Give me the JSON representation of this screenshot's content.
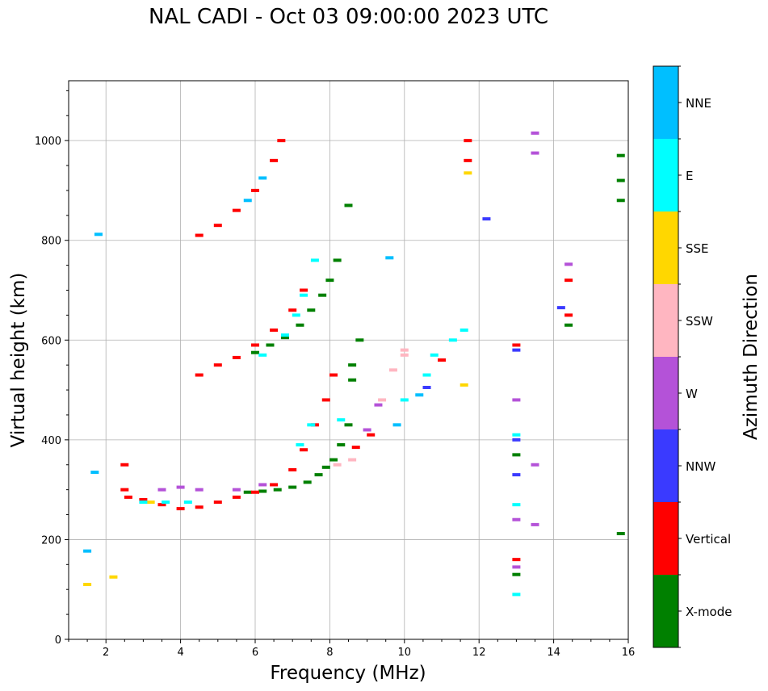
{
  "chart_data": {
    "type": "scatter",
    "title": "NAL CADI - Oct 03 09:00:00 2023 UTC",
    "xlabel": "Frequency (MHz)",
    "ylabel": "Virtual height (km)",
    "xlim": [
      1,
      16
    ],
    "ylim": [
      0,
      1120
    ],
    "xticks": [
      2,
      4,
      6,
      8,
      10,
      12,
      14,
      16
    ],
    "yticks": [
      0,
      200,
      400,
      600,
      800,
      1000
    ],
    "grid": true,
    "colorbar": {
      "label": "Azimuth Direction",
      "categories": [
        "X-mode",
        "Vertical",
        "NNW",
        "W",
        "SSW",
        "SSE",
        "E",
        "NNE"
      ],
      "colors": [
        "#008000",
        "#ff0000",
        "#3a3aff",
        "#b452d8",
        "#ffb6c1",
        "#ffd700",
        "#00ffff",
        "#00bfff"
      ]
    },
    "series": [
      {
        "name": "X-mode",
        "points": [
          [
            5.8,
            295
          ],
          [
            6.2,
            297
          ],
          [
            6.6,
            300
          ],
          [
            7.0,
            305
          ],
          [
            7.4,
            315
          ],
          [
            7.7,
            330
          ],
          [
            7.9,
            345
          ],
          [
            8.1,
            360
          ],
          [
            8.3,
            390
          ],
          [
            8.5,
            430
          ],
          [
            6.0,
            575
          ],
          [
            6.4,
            590
          ],
          [
            6.8,
            605
          ],
          [
            7.2,
            630
          ],
          [
            7.5,
            660
          ],
          [
            7.8,
            690
          ],
          [
            8.0,
            720
          ],
          [
            8.2,
            760
          ],
          [
            8.5,
            870
          ],
          [
            8.6,
            550
          ],
          [
            8.6,
            520
          ],
          [
            8.8,
            600
          ],
          [
            13.0,
            130
          ],
          [
            13.0,
            370
          ],
          [
            14.4,
            630
          ],
          [
            15.8,
            920
          ],
          [
            15.8,
            970
          ],
          [
            15.8,
            880
          ],
          [
            15.8,
            212
          ]
        ]
      },
      {
        "name": "Vertical",
        "points": [
          [
            2.6,
            285
          ],
          [
            3.0,
            280
          ],
          [
            3.5,
            270
          ],
          [
            4.0,
            262
          ],
          [
            4.5,
            265
          ],
          [
            5.0,
            275
          ],
          [
            5.5,
            285
          ],
          [
            6.0,
            295
          ],
          [
            6.5,
            310
          ],
          [
            7.0,
            340
          ],
          [
            7.3,
            380
          ],
          [
            7.6,
            430
          ],
          [
            7.9,
            480
          ],
          [
            8.1,
            530
          ],
          [
            8.7,
            385
          ],
          [
            9.1,
            410
          ],
          [
            4.5,
            530
          ],
          [
            5.0,
            550
          ],
          [
            5.5,
            565
          ],
          [
            6.0,
            590
          ],
          [
            6.5,
            620
          ],
          [
            7.0,
            660
          ],
          [
            7.3,
            700
          ],
          [
            4.5,
            810
          ],
          [
            5.0,
            830
          ],
          [
            5.5,
            860
          ],
          [
            6.0,
            900
          ],
          [
            6.5,
            960
          ],
          [
            6.7,
            1000
          ],
          [
            2.5,
            350
          ],
          [
            2.5,
            300
          ],
          [
            11.7,
            1000
          ],
          [
            11.7,
            960
          ],
          [
            13.0,
            160
          ],
          [
            13.0,
            590
          ],
          [
            14.4,
            650
          ],
          [
            14.4,
            720
          ],
          [
            11.0,
            560
          ]
        ]
      },
      {
        "name": "NNW",
        "points": [
          [
            13.0,
            330
          ],
          [
            13.0,
            400
          ],
          [
            13.0,
            580
          ],
          [
            14.2,
            665
          ],
          [
            10.6,
            505
          ],
          [
            12.2,
            843
          ]
        ]
      },
      {
        "name": "W",
        "points": [
          [
            3.5,
            300
          ],
          [
            4.0,
            305
          ],
          [
            4.5,
            300
          ],
          [
            5.5,
            300
          ],
          [
            6.2,
            310
          ],
          [
            9.0,
            420
          ],
          [
            9.3,
            470
          ],
          [
            13.0,
            145
          ],
          [
            13.0,
            240
          ],
          [
            13.0,
            480
          ],
          [
            13.5,
            1015
          ],
          [
            13.5,
            975
          ],
          [
            13.5,
            350
          ],
          [
            13.5,
            230
          ],
          [
            14.4,
            752
          ]
        ]
      },
      {
        "name": "SSW",
        "points": [
          [
            8.2,
            350
          ],
          [
            8.6,
            360
          ],
          [
            9.4,
            480
          ],
          [
            9.7,
            540
          ],
          [
            10.0,
            570
          ],
          [
            10.0,
            580
          ]
        ]
      },
      {
        "name": "SSE",
        "points": [
          [
            3.2,
            275
          ],
          [
            11.6,
            510
          ],
          [
            11.7,
            935
          ],
          [
            1.5,
            110
          ],
          [
            2.2,
            125
          ]
        ]
      },
      {
        "name": "E",
        "points": [
          [
            3.0,
            275
          ],
          [
            3.6,
            275
          ],
          [
            4.2,
            275
          ],
          [
            6.2,
            570
          ],
          [
            6.8,
            610
          ],
          [
            7.1,
            650
          ],
          [
            7.3,
            690
          ],
          [
            7.6,
            760
          ],
          [
            10.0,
            480
          ],
          [
            10.6,
            530
          ],
          [
            10.8,
            570
          ],
          [
            11.3,
            600
          ],
          [
            11.6,
            620
          ],
          [
            13.0,
            90
          ],
          [
            13.0,
            270
          ],
          [
            13.0,
            410
          ],
          [
            7.5,
            430
          ],
          [
            7.2,
            390
          ],
          [
            8.3,
            440
          ]
        ]
      },
      {
        "name": "NNE",
        "points": [
          [
            1.5,
            177
          ],
          [
            1.8,
            812
          ],
          [
            1.7,
            335
          ],
          [
            9.6,
            765
          ],
          [
            9.8,
            430
          ],
          [
            5.8,
            880
          ],
          [
            6.2,
            925
          ],
          [
            10.4,
            490
          ]
        ]
      }
    ]
  }
}
